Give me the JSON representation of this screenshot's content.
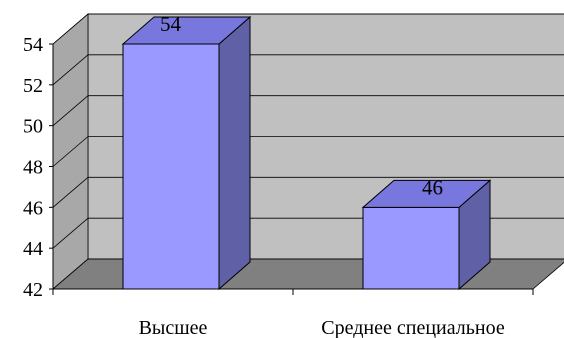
{
  "chart_data": {
    "type": "bar",
    "categories": [
      "Высшее",
      "Среднее специальное"
    ],
    "values": [
      54,
      46
    ],
    "ylim": [
      42,
      54
    ],
    "yticks": [
      42,
      44,
      46,
      48,
      50,
      52,
      54
    ],
    "grid": true,
    "title": "",
    "xlabel": "",
    "ylabel": "",
    "colors": {
      "bar_front": "#9999ff",
      "bar_top": "#7777dd",
      "bar_side": "#6060a6",
      "back_wall": "#c0c0c0",
      "side_wall": "#a8a8a8",
      "floor": "#808080",
      "gridline": "#000000"
    }
  }
}
